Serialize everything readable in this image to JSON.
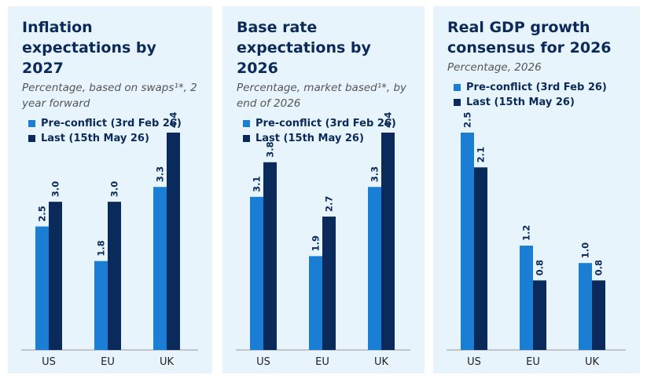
{
  "chart_data": [
    {
      "type": "bar",
      "title": "Inflation expectations by 2027",
      "subtitle": "Percentage, based on swaps¹*, 2 year forward",
      "categories": [
        "US",
        "EU",
        "UK"
      ],
      "series": [
        {
          "name": "Pre-conflict (3rd Feb 26)",
          "color": "#1a7fd4",
          "values": [
            2.5,
            1.8,
            3.3
          ],
          "value_labels": [
            "2.5",
            "1.8",
            "3.3"
          ]
        },
        {
          "name": "Last (15th May 26)",
          "color": "#0a2a5c",
          "values": [
            3.0,
            3.0,
            4.4
          ],
          "value_labels": [
            "3.0",
            "3.0",
            "4.4"
          ]
        }
      ]
    },
    {
      "type": "bar",
      "title": "Base rate expectations by 2026",
      "subtitle": "Percentage, market based¹*, by end of 2026",
      "categories": [
        "US",
        "EU",
        "UK"
      ],
      "series": [
        {
          "name": "Pre-conflict (3rd Feb 26)",
          "color": "#1a7fd4",
          "values": [
            3.1,
            1.9,
            3.3
          ],
          "value_labels": [
            "3.1",
            "1.9",
            "3.3"
          ]
        },
        {
          "name": "Last (15th May 26)",
          "color": "#0a2a5c",
          "values": [
            3.8,
            2.7,
            4.4
          ],
          "value_labels": [
            "3.8",
            "2.7",
            "4.4"
          ]
        }
      ]
    },
    {
      "type": "bar",
      "title": "Real GDP growth consensus for 2026",
      "subtitle": "Percentage, 2026",
      "categories": [
        "US",
        "EU",
        "UK"
      ],
      "series": [
        {
          "name": "Pre-conflict (3rd Feb 26)",
          "color": "#1a7fd4",
          "values": [
            2.5,
            1.2,
            1.0
          ],
          "value_labels": [
            "2.5",
            "1.2",
            "1.0"
          ]
        },
        {
          "name": "Last (15th May 26)",
          "color": "#0a2a5c",
          "values": [
            2.1,
            0.8,
            0.8
          ],
          "value_labels": [
            "2.1",
            "0.8",
            "0.8"
          ]
        }
      ]
    }
  ]
}
